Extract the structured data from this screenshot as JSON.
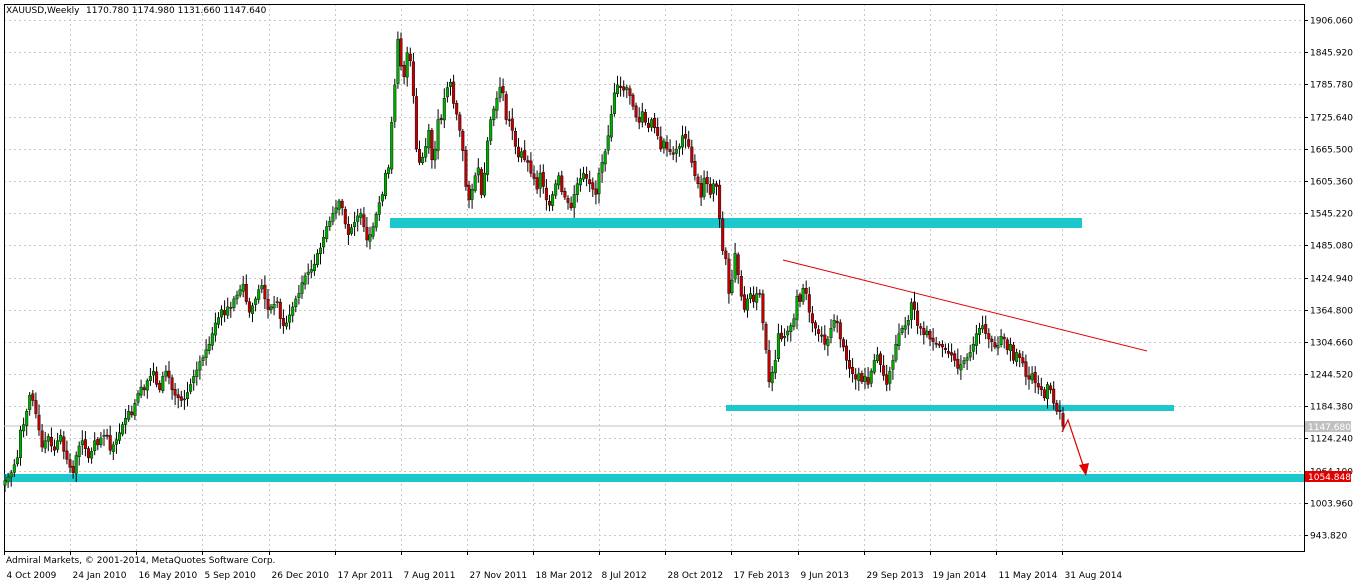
{
  "header": {
    "symbol": "XAUUSD,Weekly",
    "ohlc": "1170.780 1174.980 1131.660 1147.640"
  },
  "copyright": "Admiral Markets, © 2001-2014, MetaQuotes Software Corp.",
  "colors": {
    "bull": "#00aa00",
    "bear": "#c00000",
    "support": "#1cc8cc",
    "trendline": "#e00000",
    "price_tag_bg": "#c0c0c0",
    "level_tag_bg": "#e00000"
  },
  "chart_data": {
    "type": "candlestick",
    "symbol": "XAUUSD",
    "timeframe": "Weekly",
    "y_ticks": [
      "1906.060",
      "1845.920",
      "1785.780",
      "1725.640",
      "1665.500",
      "1605.360",
      "1545.220",
      "1485.080",
      "1424.940",
      "1364.800",
      "1304.660",
      "1244.520",
      "1184.380",
      "1124.240",
      "1064.100",
      "1003.960",
      "943.820"
    ],
    "x_ticks": [
      "4 Oct 2009",
      "24 Jan 2010",
      "16 May 2010",
      "5 Sep 2010",
      "26 Dec 2010",
      "17 Apr 2011",
      "7 Aug 2011",
      "27 Nov 2011",
      "18 Mar 2012",
      "8 Jul 2012",
      "28 Oct 2012",
      "17 Feb 2013",
      "9 Jun 2013",
      "29 Sep 2013",
      "19 Jan 2014",
      "11 May 2014",
      "31 Aug 2014"
    ],
    "y_range": [
      913.75,
      1936.13
    ],
    "current_price": "1147.680",
    "level_label": "1054.848",
    "closes": [
      1045,
      1052,
      1060,
      1075,
      1088,
      1140,
      1150,
      1175,
      1205,
      1195,
      1170,
      1140,
      1108,
      1120,
      1128,
      1110,
      1102,
      1120,
      1130,
      1100,
      1085,
      1070,
      1060,
      1092,
      1110,
      1120,
      1105,
      1088,
      1100,
      1120,
      1112,
      1125,
      1130,
      1128,
      1102,
      1112,
      1122,
      1135,
      1150,
      1162,
      1175,
      1168,
      1190,
      1208,
      1220,
      1215,
      1232,
      1240,
      1250,
      1225,
      1215,
      1240,
      1250,
      1238,
      1215,
      1205,
      1200,
      1195,
      1198,
      1210,
      1225,
      1240,
      1252,
      1268,
      1275,
      1290,
      1300,
      1320,
      1340,
      1350,
      1365,
      1355,
      1370,
      1368,
      1385,
      1392,
      1402,
      1412,
      1380,
      1360,
      1372,
      1385,
      1402,
      1410,
      1385,
      1365,
      1370,
      1375,
      1380,
      1348,
      1335,
      1340,
      1355,
      1370,
      1385,
      1395,
      1415,
      1428,
      1435,
      1440,
      1450,
      1470,
      1480,
      1500,
      1520,
      1530,
      1545,
      1555,
      1568,
      1555,
      1525,
      1505,
      1518,
      1528,
      1540,
      1545,
      1520,
      1495,
      1505,
      1520,
      1543,
      1565,
      1580,
      1620,
      1630,
      1715,
      1785,
      1870,
      1820,
      1800,
      1845,
      1830,
      1765,
      1665,
      1640,
      1650,
      1670,
      1700,
      1645,
      1665,
      1720,
      1720,
      1760,
      1780,
      1790,
      1750,
      1730,
      1700,
      1662,
      1595,
      1570,
      1590,
      1615,
      1630,
      1580,
      1620,
      1680,
      1720,
      1740,
      1760,
      1780,
      1770,
      1720,
      1720,
      1700,
      1670,
      1650,
      1660,
      1645,
      1640,
      1620,
      1610,
      1590,
      1620,
      1595,
      1570,
      1560,
      1580,
      1600,
      1615,
      1585,
      1575,
      1565,
      1555,
      1580,
      1600,
      1610,
      1620,
      1610,
      1600,
      1590,
      1580,
      1620,
      1640,
      1660,
      1690,
      1730,
      1770,
      1785,
      1780,
      1775,
      1780,
      1765,
      1745,
      1725,
      1715,
      1735,
      1715,
      1705,
      1720,
      1705,
      1690,
      1665,
      1680,
      1665,
      1660,
      1655,
      1665,
      1670,
      1690,
      1685,
      1670,
      1640,
      1615,
      1600,
      1575,
      1610,
      1600,
      1580,
      1600,
      1595,
      1535,
      1475,
      1460,
      1395,
      1420,
      1470,
      1430,
      1390,
      1365,
      1385,
      1395,
      1380,
      1395,
      1395,
      1340,
      1290,
      1230,
      1248,
      1270,
      1320,
      1310,
      1315,
      1325,
      1335,
      1348,
      1390,
      1380,
      1405,
      1395,
      1360,
      1340,
      1330,
      1320,
      1315,
      1300,
      1310,
      1330,
      1345,
      1340,
      1310,
      1295,
      1270,
      1255,
      1245,
      1235,
      1245,
      1230,
      1240,
      1225,
      1250,
      1270,
      1280,
      1262,
      1242,
      1225,
      1250,
      1270,
      1300,
      1320,
      1330,
      1335,
      1345,
      1378,
      1365,
      1335,
      1330,
      1318,
      1325,
      1310,
      1305,
      1300,
      1298,
      1295,
      1290,
      1283,
      1280,
      1270,
      1255,
      1262,
      1270,
      1275,
      1285,
      1300,
      1320,
      1330,
      1335,
      1320,
      1310,
      1305,
      1295,
      1298,
      1315,
      1310,
      1290,
      1300,
      1270,
      1285,
      1275,
      1265,
      1240,
      1235,
      1245,
      1228,
      1220,
      1215,
      1200,
      1225,
      1215,
      1190,
      1175,
      1174,
      1147
    ]
  }
}
